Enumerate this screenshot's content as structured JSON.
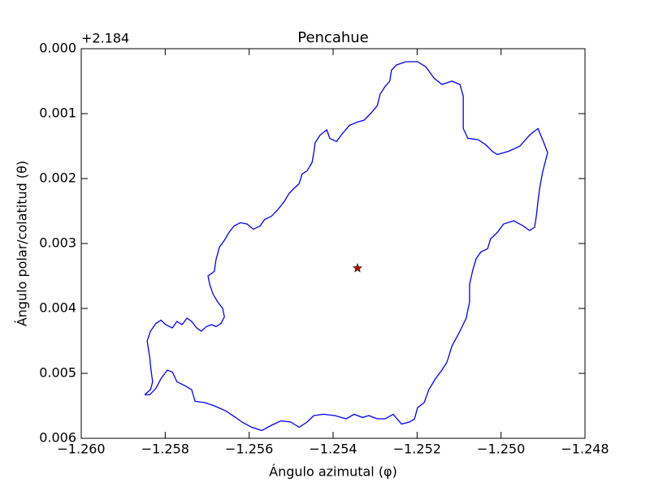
{
  "chart_data": {
    "type": "line",
    "title": "Pencahue",
    "x_label": "Ángulo azimutal (φ)",
    "y_label": "Ángulo polar/colatitud (θ)",
    "y_offset_label": "+2.184",
    "xlim": [
      -1.26,
      -1.248
    ],
    "ylim": [
      0.006,
      0.0
    ],
    "xticks": [
      {
        "value": -1.26,
        "label": "−1.260"
      },
      {
        "value": -1.258,
        "label": "−1.258"
      },
      {
        "value": -1.256,
        "label": "−1.256"
      },
      {
        "value": -1.254,
        "label": "−1.254"
      },
      {
        "value": -1.252,
        "label": "−1.252"
      },
      {
        "value": -1.25,
        "label": "−1.250"
      },
      {
        "value": -1.248,
        "label": "−1.248"
      }
    ],
    "yticks": [
      {
        "value": 0.0,
        "label": "0.000"
      },
      {
        "value": 0.001,
        "label": "0.001"
      },
      {
        "value": 0.002,
        "label": "0.002"
      },
      {
        "value": 0.003,
        "label": "0.003"
      },
      {
        "value": 0.004,
        "label": "0.004"
      },
      {
        "value": 0.005,
        "label": "0.005"
      },
      {
        "value": 0.006,
        "label": "0.006"
      }
    ],
    "series": [
      {
        "color": "#0000ff",
        "x": [
          -1.25849,
          -1.25835,
          -1.2583,
          -1.25834,
          -1.25837,
          -1.25843,
          -1.25835,
          -1.25822,
          -1.2581,
          -1.25799,
          -1.25783,
          -1.25772,
          -1.2576,
          -1.25748,
          -1.25737,
          -1.25725,
          -1.25714,
          -1.25702,
          -1.2569,
          -1.25679,
          -1.25667,
          -1.25659,
          -1.25663,
          -1.25675,
          -1.25686,
          -1.25694,
          -1.25698,
          -1.25683,
          -1.25679,
          -1.25671,
          -1.25659,
          -1.25648,
          -1.25636,
          -1.25621,
          -1.25605,
          -1.2559,
          -1.25574,
          -1.25563,
          -1.25547,
          -1.25532,
          -1.25516,
          -1.25505,
          -1.25493,
          -1.25481,
          -1.25474,
          -1.25462,
          -1.2545,
          -1.25446,
          -1.25443,
          -1.25431,
          -1.25415,
          -1.25408,
          -1.25392,
          -1.25377,
          -1.25361,
          -1.25342,
          -1.25326,
          -1.25311,
          -1.25295,
          -1.25288,
          -1.25276,
          -1.25265,
          -1.25261,
          -1.25249,
          -1.25226,
          -1.25199,
          -1.25179,
          -1.2516,
          -1.25141,
          -1.25117,
          -1.25098,
          -1.2509,
          -1.2509,
          -1.2509,
          -1.25079,
          -1.25055,
          -1.25036,
          -1.25021,
          -1.25009,
          -1.24982,
          -1.24955,
          -1.24932,
          -1.24912,
          -1.24901,
          -1.24889,
          -1.24901,
          -1.24908,
          -1.24912,
          -1.24916,
          -1.2492,
          -1.24932,
          -1.24947,
          -1.2497,
          -1.24994,
          -1.25009,
          -1.25025,
          -1.25032,
          -1.25048,
          -1.25059,
          -1.25067,
          -1.25075,
          -1.25075,
          -1.25083,
          -1.25098,
          -1.25117,
          -1.25129,
          -1.25141,
          -1.25156,
          -1.25172,
          -1.25183,
          -1.25199,
          -1.25206,
          -1.25218,
          -1.25237,
          -1.25257,
          -1.25276,
          -1.25295,
          -1.25315,
          -1.2533,
          -1.2535,
          -1.25369,
          -1.25396,
          -1.25423,
          -1.25446,
          -1.25462,
          -1.25481,
          -1.25501,
          -1.25524,
          -1.25547,
          -1.2557,
          -1.25594,
          -1.25617,
          -1.25632,
          -1.25655,
          -1.25683,
          -1.25706,
          -1.25729,
          -1.25737,
          -1.25756,
          -1.25772,
          -1.25783,
          -1.25795,
          -1.2581,
          -1.25822,
          -1.25837,
          -1.25849
        ],
        "y": [
          0.00533,
          0.00525,
          0.00513,
          0.00494,
          0.00475,
          0.0045,
          0.00435,
          0.00423,
          0.00418,
          0.00425,
          0.0043,
          0.0042,
          0.00425,
          0.00415,
          0.0042,
          0.0043,
          0.00435,
          0.00428,
          0.00425,
          0.00428,
          0.00423,
          0.00413,
          0.004,
          0.0039,
          0.00378,
          0.00363,
          0.0035,
          0.00343,
          0.00325,
          0.00306,
          0.00295,
          0.00283,
          0.00273,
          0.00268,
          0.0027,
          0.00278,
          0.00273,
          0.00263,
          0.00258,
          0.00248,
          0.00235,
          0.00223,
          0.00215,
          0.00208,
          0.00193,
          0.00188,
          0.00175,
          0.0016,
          0.00145,
          0.00133,
          0.00125,
          0.00138,
          0.00143,
          0.0013,
          0.00118,
          0.00113,
          0.0011,
          0.001,
          0.00088,
          0.0007,
          0.00058,
          0.0005,
          0.00033,
          0.00025,
          0.0002,
          0.0002,
          0.00028,
          0.00045,
          0.00055,
          0.0005,
          0.00055,
          0.00073,
          0.001,
          0.00123,
          0.00138,
          0.0014,
          0.00148,
          0.00158,
          0.00163,
          0.00158,
          0.0015,
          0.00133,
          0.00123,
          0.0014,
          0.0016,
          0.0019,
          0.00215,
          0.00235,
          0.00258,
          0.00275,
          0.0028,
          0.00273,
          0.00265,
          0.0027,
          0.00283,
          0.00293,
          0.00308,
          0.00313,
          0.00323,
          0.0034,
          0.00363,
          0.0039,
          0.00415,
          0.00435,
          0.00458,
          0.00483,
          0.00495,
          0.00508,
          0.00525,
          0.00545,
          0.00553,
          0.0057,
          0.00575,
          0.00578,
          0.00563,
          0.0057,
          0.0057,
          0.00565,
          0.00568,
          0.00563,
          0.0057,
          0.00565,
          0.00563,
          0.00565,
          0.00575,
          0.00583,
          0.00575,
          0.00573,
          0.0058,
          0.00588,
          0.00583,
          0.00575,
          0.00568,
          0.00558,
          0.0055,
          0.00545,
          0.00543,
          0.00525,
          0.00518,
          0.00513,
          0.00498,
          0.00495,
          0.00508,
          0.00523,
          0.00533,
          0.00533
        ]
      }
    ],
    "marker": {
      "shape": "star",
      "color": "#cc0000",
      "x": -1.25342,
      "y": 0.00338
    }
  }
}
